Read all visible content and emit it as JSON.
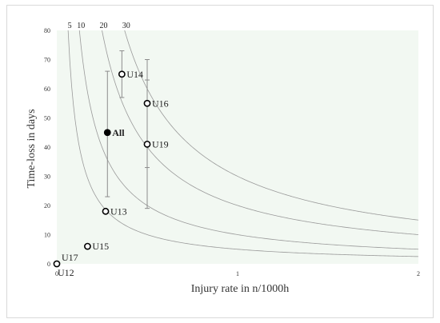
{
  "chart_data": {
    "type": "scatter",
    "xlabel": "Injury rate in n/1000h",
    "ylabel": "Time-loss in days",
    "xlim": [
      0,
      2
    ],
    "ylim": [
      0,
      80
    ],
    "x_ticks": [
      "0",
      "1",
      "2"
    ],
    "y_ticks": [
      "0",
      "10",
      "20",
      "30",
      "40",
      "50",
      "60",
      "70",
      "80"
    ],
    "grid": false,
    "iso_curves": [
      {
        "label": "5",
        "k": 5
      },
      {
        "label": "10",
        "k": 10
      },
      {
        "label": "20",
        "k": 20
      },
      {
        "label": "30",
        "k": 30
      }
    ],
    "points": [
      {
        "label": "U12",
        "x": 0.0,
        "y": 0,
        "filled": false,
        "bold": false
      },
      {
        "label": "U17",
        "x": 0.0,
        "y": 0,
        "filled": false,
        "bold": false
      },
      {
        "label": "U15",
        "x": 0.17,
        "y": 6,
        "filled": false,
        "bold": false
      },
      {
        "label": "U13",
        "x": 0.27,
        "y": 18,
        "filled": false,
        "bold": false
      },
      {
        "label": "All",
        "x": 0.28,
        "y": 45,
        "filled": true,
        "bold": true,
        "err": [
          23,
          66
        ]
      },
      {
        "label": "U14",
        "x": 0.36,
        "y": 65,
        "filled": false,
        "bold": false,
        "err": [
          57,
          73
        ]
      },
      {
        "label": "U16",
        "x": 0.5,
        "y": 55,
        "filled": false,
        "bold": false,
        "err": [
          33,
          70
        ]
      },
      {
        "label": "U19",
        "x": 0.5,
        "y": 41,
        "filled": false,
        "bold": false,
        "err": [
          19,
          63
        ]
      }
    ],
    "colors": {
      "plot_bg": "#f2f8f2",
      "curve": "#9a9a9a",
      "error": "#8c8c8c"
    }
  }
}
